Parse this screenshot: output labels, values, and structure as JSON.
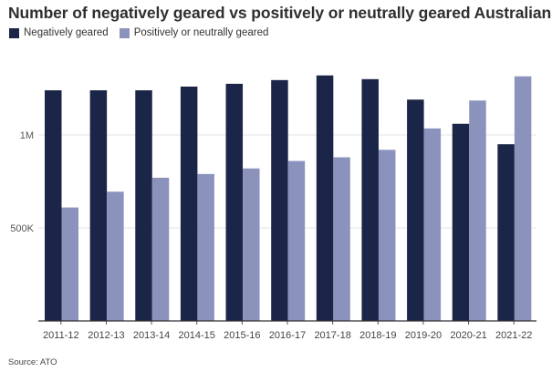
{
  "chart_data": {
    "type": "bar",
    "title": "Number of negatively geared vs positively or neutrally geared Australians",
    "categories": [
      "2011-12",
      "2012-13",
      "2013-14",
      "2014-15",
      "2015-16",
      "2016-17",
      "2017-18",
      "2018-19",
      "2019-20",
      "2020-21",
      "2021-22"
    ],
    "series": [
      {
        "name": "Negatively geared",
        "color": "#1b2547",
        "values": [
          1240000,
          1240000,
          1240000,
          1260000,
          1275000,
          1295000,
          1320000,
          1300000,
          1190000,
          1060000,
          950000
        ]
      },
      {
        "name": "Positively or neutrally geared",
        "color": "#8b93bd",
        "values": [
          610000,
          695000,
          770000,
          790000,
          820000,
          860000,
          880000,
          920000,
          1035000,
          1185000,
          1315000
        ]
      }
    ],
    "y_ticks": [
      {
        "value": 500000,
        "label": "500K"
      },
      {
        "value": 1000000,
        "label": "1M"
      }
    ],
    "ylim": [
      0,
      1500000
    ],
    "grid": true,
    "legend_position": "top-left",
    "source": "Source: ATO"
  }
}
